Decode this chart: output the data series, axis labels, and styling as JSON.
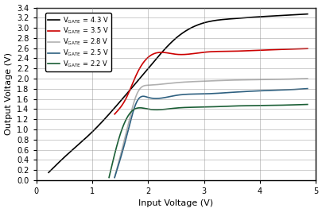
{
  "xlabel": "Input Voltage (V)",
  "ylabel": "Output Voltage (V)",
  "xlim": [
    0,
    5
  ],
  "ylim": [
    0,
    3.4
  ],
  "xticks": [
    0,
    1,
    2,
    3,
    4,
    5
  ],
  "yticks": [
    0,
    0.2,
    0.4,
    0.6,
    0.8,
    1.0,
    1.2,
    1.4,
    1.6,
    1.8,
    2.0,
    2.2,
    2.4,
    2.6,
    2.8,
    3.0,
    3.2,
    3.4
  ],
  "curves": [
    {
      "label_pre": "V",
      "label_sub": "GATE",
      "label_post": " = 4.3 V",
      "color": "#000000",
      "linewidth": 1.2,
      "x_points": [
        0.22,
        0.5,
        1.0,
        1.5,
        2.0,
        2.5,
        3.0,
        3.5,
        4.0,
        4.5,
        4.8
      ],
      "y_points": [
        0.15,
        0.45,
        0.95,
        1.55,
        2.2,
        2.8,
        3.1,
        3.18,
        3.22,
        3.25,
        3.27
      ]
    },
    {
      "label_pre": "V",
      "label_sub": "GATE",
      "label_post": " = 3.5 V",
      "color": "#cc0000",
      "linewidth": 1.2,
      "x_points": [
        1.4,
        1.6,
        1.8,
        2.0,
        2.5,
        3.0,
        3.5,
        4.0,
        4.5,
        4.8
      ],
      "y_points": [
        1.3,
        1.6,
        2.1,
        2.42,
        2.48,
        2.52,
        2.54,
        2.56,
        2.58,
        2.59
      ]
    },
    {
      "label_pre": "V",
      "label_sub": "GATE",
      "label_post": " = 2.8 V",
      "color": "#b0b0b0",
      "linewidth": 1.2,
      "x_points": [
        1.4,
        1.6,
        1.8,
        2.0,
        2.5,
        3.0,
        3.5,
        4.0,
        4.5,
        4.8
      ],
      "y_points": [
        0.05,
        0.9,
        1.7,
        1.87,
        1.92,
        1.95,
        1.97,
        1.98,
        1.99,
        2.0
      ]
    },
    {
      "label_pre": "V",
      "label_sub": "GATE",
      "label_post": " = 2.5 V",
      "color": "#2e6080",
      "linewidth": 1.2,
      "x_points": [
        1.4,
        1.6,
        1.8,
        2.0,
        2.5,
        3.0,
        3.5,
        4.0,
        4.5,
        4.8
      ],
      "y_points": [
        0.05,
        0.8,
        1.55,
        1.63,
        1.67,
        1.7,
        1.73,
        1.76,
        1.78,
        1.8
      ]
    },
    {
      "label_pre": "V",
      "label_sub": "GATE",
      "label_post": " = 2.2 V",
      "color": "#1a5e35",
      "linewidth": 1.2,
      "x_points": [
        1.3,
        1.5,
        1.7,
        2.0,
        2.5,
        3.0,
        3.5,
        4.0,
        4.5,
        4.8
      ],
      "y_points": [
        0.05,
        0.9,
        1.35,
        1.4,
        1.42,
        1.44,
        1.46,
        1.47,
        1.48,
        1.49
      ]
    }
  ],
  "background_color": "#ffffff",
  "grid_color": "#888888",
  "grid_alpha": 0.6,
  "grid_linewidth": 0.5
}
